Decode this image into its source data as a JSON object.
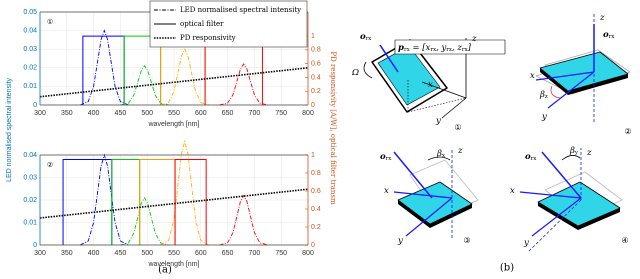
{
  "chart_data": [
    {
      "type": "line",
      "panel_label": "①",
      "xlabel": "wavelength [nm]",
      "ylabel": "LED normalised spectral intensity",
      "y2label": "PD responsivity [A/W], optical filter transm",
      "xlim": [
        300,
        800
      ],
      "xticks": [
        300,
        350,
        400,
        450,
        500,
        550,
        600,
        650,
        700,
        750,
        800
      ],
      "ylim": [
        0,
        0.05
      ],
      "yticks": [
        0,
        0.01,
        0.02,
        0.03,
        0.04,
        0.05
      ],
      "y2lim": [
        0,
        1.35
      ],
      "y2ticks": [
        0,
        0.2,
        0.4,
        0.6,
        0.8,
        1
      ],
      "ycolor": "#0072bd",
      "y2color": "#d95319",
      "grid": true,
      "legend_loc": "upper right",
      "legend": [
        {
          "label": "LED normalised spectral intensity",
          "style": "dashdot"
        },
        {
          "label": "optical filter",
          "style": "solid"
        },
        {
          "label": "PD responsivity",
          "style": "dotted"
        }
      ],
      "series": [
        {
          "color": "#0000ff",
          "style": "dashdot",
          "x": [
            375,
            390,
            400,
            408,
            414,
            420,
            426,
            432,
            440,
            450,
            465
          ],
          "values": [
            0,
            0.0018,
            0.01,
            0.0244,
            0.0352,
            0.04,
            0.0352,
            0.0244,
            0.01,
            0.0018,
            0
          ]
        },
        {
          "color": "#00cc00",
          "style": "dashdot",
          "x": [
            450,
            465,
            475,
            483,
            489,
            495,
            501,
            507,
            515,
            525,
            540
          ],
          "values": [
            0,
            0.0009,
            0.0053,
            0.0128,
            0.0185,
            0.021,
            0.0185,
            0.0128,
            0.0053,
            0.0009,
            0
          ]
        },
        {
          "color": "#ffb000",
          "style": "dashdot",
          "x": [
            525,
            540,
            550,
            558,
            564,
            570,
            576,
            582,
            590,
            600,
            615
          ],
          "values": [
            0,
            0.0013,
            0.0075,
            0.0183,
            0.0264,
            0.03,
            0.0264,
            0.0183,
            0.0075,
            0.0013,
            0
          ]
        },
        {
          "color": "#ff0000",
          "style": "dashdot",
          "x": [
            635,
            650,
            660,
            668,
            674,
            680,
            686,
            692,
            700,
            710,
            725
          ],
          "values": [
            0,
            0.001,
            0.0055,
            0.0134,
            0.0194,
            0.022,
            0.0194,
            0.0134,
            0.0055,
            0.001,
            0
          ]
        },
        {
          "color": "#0000ff",
          "style": "solid",
          "axis": "y2",
          "x": [
            380,
            380,
            457,
            457
          ],
          "values": [
            0,
            1,
            1,
            0
          ]
        },
        {
          "color": "#00cc00",
          "style": "solid",
          "axis": "y2",
          "x": [
            457,
            457,
            525,
            525
          ],
          "values": [
            0,
            1,
            1,
            0
          ]
        },
        {
          "color": "#ff9900",
          "style": "solid",
          "axis": "y2",
          "x": [
            525,
            525,
            608,
            608
          ],
          "values": [
            0,
            1,
            1,
            0
          ]
        },
        {
          "color": "#ff0000",
          "style": "solid",
          "axis": "y2",
          "x": [
            608,
            608,
            715,
            715
          ],
          "values": [
            0,
            1,
            1,
            0
          ]
        },
        {
          "color": "#000000",
          "style": "dotted",
          "axis": "y2",
          "x": [
            300,
            800
          ],
          "values": [
            0.12,
            0.54
          ]
        }
      ]
    },
    {
      "type": "line",
      "panel_label": "②",
      "xlabel": "wavelength [nm]",
      "xlim": [
        300,
        800
      ],
      "xticks": [
        300,
        350,
        400,
        450,
        500,
        550,
        600,
        650,
        700,
        750,
        800
      ],
      "ylim": [
        0,
        0.04
      ],
      "yticks": [
        0,
        0.01,
        0.02,
        0.03,
        0.04
      ],
      "y2lim": [
        0,
        1
      ],
      "y2ticks": [
        0,
        0.2,
        0.4,
        0.6,
        0.8,
        1
      ],
      "ycolor": "#0072bd",
      "y2color": "#d95319",
      "grid": true,
      "series": [
        {
          "color": "#0000ff",
          "style": "dashdot",
          "x": [
            375,
            390,
            400,
            408,
            414,
            420,
            426,
            432,
            440,
            450,
            465
          ],
          "values": [
            0,
            0.0018,
            0.01,
            0.0244,
            0.0352,
            0.04,
            0.0352,
            0.0244,
            0.01,
            0.0018,
            0
          ]
        },
        {
          "color": "#00cc00",
          "style": "dashdot",
          "x": [
            450,
            465,
            475,
            483,
            489,
            495,
            501,
            507,
            515,
            525,
            540
          ],
          "values": [
            0,
            0.0009,
            0.0053,
            0.0128,
            0.0185,
            0.021,
            0.0185,
            0.0128,
            0.0053,
            0.0009,
            0
          ]
        },
        {
          "color": "#ffb000",
          "style": "dashdot",
          "x": [
            525,
            540,
            550,
            558,
            564,
            570,
            576,
            582,
            590,
            600,
            615
          ],
          "values": [
            0,
            0.002,
            0.0115,
            0.0281,
            0.0405,
            0.046,
            0.0405,
            0.0281,
            0.0115,
            0.002,
            0
          ]
        },
        {
          "color": "#ff0000",
          "style": "dashdot",
          "x": [
            635,
            650,
            660,
            668,
            674,
            680,
            686,
            692,
            700,
            710,
            725
          ],
          "values": [
            0,
            0.001,
            0.0055,
            0.0134,
            0.0194,
            0.022,
            0.0194,
            0.0134,
            0.0055,
            0.001,
            0
          ]
        },
        {
          "color": "#0000ff",
          "style": "solid",
          "axis": "y2",
          "x": [
            343,
            343,
            434,
            434
          ],
          "values": [
            0,
            0.95,
            0.95,
            0
          ]
        },
        {
          "color": "#00cc00",
          "style": "solid",
          "axis": "y2",
          "x": [
            434,
            434,
            486,
            486
          ],
          "values": [
            0,
            0.95,
            0.95,
            0
          ]
        },
        {
          "color": "#ff9900",
          "style": "solid",
          "axis": "y2",
          "x": [
            486,
            486,
            552,
            552
          ],
          "values": [
            0,
            0.95,
            0.95,
            0
          ]
        },
        {
          "color": "#ff0000",
          "style": "solid",
          "axis": "y2",
          "x": [
            552,
            552,
            610,
            610
          ],
          "values": [
            0,
            0.95,
            0.95,
            0
          ]
        },
        {
          "color": "#000000",
          "style": "dotted",
          "axis": "y2",
          "x": [
            300,
            800
          ],
          "values": [
            0.3,
            0.62
          ]
        }
      ]
    }
  ],
  "diagram": {
    "panels": [
      {
        "number": "①",
        "labels": [
          [
            "o",
            "rx"
          ],
          [
            "p",
            "rx",
            " = [x",
            "rx",
            ", y",
            "rx",
            ", z",
            "rx",
            "]"
          ],
          [
            "Ω"
          ],
          [
            "z"
          ],
          [
            "x"
          ],
          [
            "y"
          ]
        ]
      },
      {
        "number": "②",
        "labels": [
          [
            "z"
          ],
          [
            "o",
            "rx"
          ],
          [
            "x"
          ],
          [
            "β",
            "z"
          ],
          [
            "y"
          ]
        ]
      },
      {
        "number": "③",
        "labels": [
          [
            "o",
            "rx"
          ],
          [
            "β",
            "x"
          ],
          [
            "z"
          ],
          [
            "x"
          ],
          [
            "y"
          ]
        ]
      },
      {
        "number": "④",
        "labels": [
          [
            "o",
            "rx"
          ],
          [
            "β",
            "y"
          ],
          [
            "z"
          ],
          [
            "x"
          ],
          [
            "y"
          ]
        ]
      }
    ]
  },
  "captions": [
    "(a)",
    "(b)"
  ]
}
